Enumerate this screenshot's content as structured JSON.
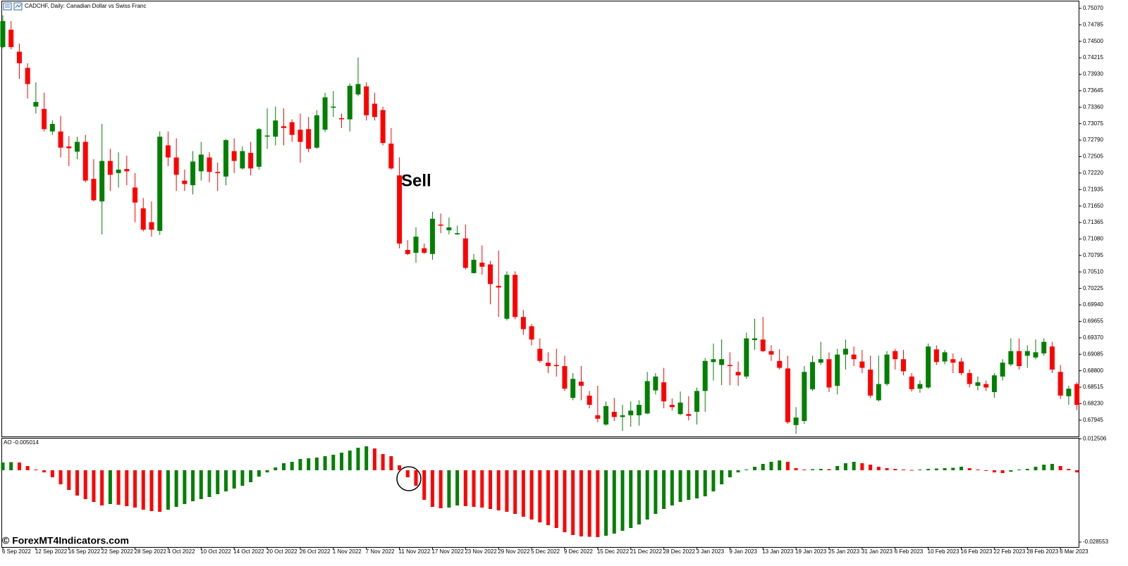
{
  "header": {
    "title": "CADCHF, Daily:  Canadian Dollar vs Swiss Franc"
  },
  "watermark": "© ForexMT4Indicators.com",
  "annotation": "Sell",
  "chart_data": [
    {
      "type": "candlestick",
      "up_color": "#008000",
      "down_color": "#ff0000",
      "open": [
        0.744,
        0.747,
        0.7432,
        0.7404,
        0.7337,
        0.7333,
        0.7294,
        0.7294,
        0.7268,
        0.7259,
        0.7276,
        0.7212,
        0.7173,
        0.7243,
        0.7222,
        0.7229,
        0.7197,
        0.7161,
        0.7137,
        0.7122,
        0.727,
        0.7249,
        0.7209,
        0.7201,
        0.7225,
        0.7249,
        0.7224,
        0.7216,
        0.726,
        0.723,
        0.7257,
        0.7233,
        0.7285,
        0.7285,
        0.7303,
        0.731,
        0.7297,
        0.7298,
        0.7266,
        0.7297,
        0.7336,
        0.7317,
        0.7315,
        0.7358,
        0.7372,
        0.7342,
        0.7331,
        0.7273,
        0.7218,
        0.7089,
        0.7084,
        0.7092,
        0.7082,
        0.7133,
        0.7123,
        0.7116,
        0.7109,
        0.7049,
        0.7067,
        0.7064,
        0.7027,
        0.697,
        0.7046,
        0.6973,
        0.6957,
        0.6918,
        0.6894,
        0.689,
        0.6888,
        0.6833,
        0.6861,
        0.6837,
        0.6803,
        0.6787,
        0.6809,
        0.68,
        0.6803,
        0.6803,
        0.6806,
        0.6846,
        0.686,
        0.6821,
        0.6805,
        0.6805,
        0.6809,
        0.6845,
        0.6895,
        0.689,
        0.689,
        0.6878,
        0.687,
        0.6933,
        0.6934,
        0.6914,
        0.6897,
        0.6884,
        0.6786,
        0.6793,
        0.6848,
        0.6894,
        0.69,
        0.6854,
        0.6908,
        0.6908,
        0.6896,
        0.6882,
        0.6829,
        0.6857,
        0.6914,
        0.69,
        0.687,
        0.6849,
        0.6851,
        0.6917,
        0.6896,
        0.69,
        0.6896,
        0.6876,
        0.6854,
        0.6857,
        0.6843,
        0.687,
        0.6891,
        0.6914,
        0.6906,
        0.6903,
        0.691,
        0.6922,
        0.6878,
        0.6836,
        0.6857
      ],
      "high": [
        0.7495,
        0.7485,
        0.7446,
        0.7412,
        0.7379,
        0.7361,
        0.7313,
        0.7321,
        0.7286,
        0.7285,
        0.7288,
        0.7246,
        0.7307,
        0.7264,
        0.7258,
        0.7252,
        0.7222,
        0.7179,
        0.7173,
        0.7294,
        0.7294,
        0.7282,
        0.7228,
        0.726,
        0.7276,
        0.7258,
        0.724,
        0.7281,
        0.7282,
        0.7268,
        0.7276,
        0.73,
        0.7334,
        0.7337,
        0.7334,
        0.7315,
        0.7325,
        0.7319,
        0.7331,
        0.7361,
        0.7364,
        0.7325,
        0.7377,
        0.7422,
        0.7379,
        0.7361,
        0.7337,
        0.73,
        0.7249,
        0.7106,
        0.7128,
        0.71,
        0.7155,
        0.7152,
        0.7145,
        0.7131,
        0.7133,
        0.7082,
        0.7097,
        0.707,
        0.7088,
        0.7052,
        0.7052,
        0.6985,
        0.6961,
        0.6936,
        0.6912,
        0.6918,
        0.6906,
        0.6876,
        0.6888,
        0.6845,
        0.6854,
        0.6827,
        0.6833,
        0.6821,
        0.6827,
        0.6829,
        0.6878,
        0.6876,
        0.6885,
        0.6832,
        0.6844,
        0.6836,
        0.6851,
        0.6902,
        0.6927,
        0.6934,
        0.6912,
        0.6896,
        0.6946,
        0.697,
        0.6973,
        0.6924,
        0.6917,
        0.6906,
        0.6817,
        0.6888,
        0.6906,
        0.693,
        0.6912,
        0.6918,
        0.6934,
        0.6922,
        0.6916,
        0.6906,
        0.6906,
        0.6914,
        0.6918,
        0.6916,
        0.6876,
        0.6863,
        0.6927,
        0.6924,
        0.6916,
        0.691,
        0.6902,
        0.6882,
        0.687,
        0.6863,
        0.6876,
        0.69,
        0.6936,
        0.6936,
        0.6924,
        0.6934,
        0.6936,
        0.693,
        0.689,
        0.6854,
        0.686
      ],
      "low": [
        0.7438,
        0.7436,
        0.7385,
        0.7351,
        0.7325,
        0.7294,
        0.7288,
        0.7249,
        0.7234,
        0.7246,
        0.7206,
        0.7173,
        0.7116,
        0.7191,
        0.7197,
        0.7201,
        0.7137,
        0.7121,
        0.7112,
        0.7115,
        0.7234,
        0.7191,
        0.7191,
        0.7185,
        0.7209,
        0.7206,
        0.7191,
        0.7201,
        0.7222,
        0.7228,
        0.7218,
        0.7228,
        0.7264,
        0.727,
        0.727,
        0.7276,
        0.724,
        0.7258,
        0.7264,
        0.7293,
        0.7319,
        0.73,
        0.7294,
        0.7355,
        0.7313,
        0.7313,
        0.727,
        0.7228,
        0.7092,
        0.708,
        0.7067,
        0.7082,
        0.7072,
        0.7118,
        0.7116,
        0.7115,
        0.7055,
        0.7048,
        0.7046,
        0.6995,
        0.6973,
        0.6967,
        0.6969,
        0.6942,
        0.6924,
        0.6894,
        0.6876,
        0.687,
        0.6845,
        0.6829,
        0.6829,
        0.6815,
        0.6791,
        0.6785,
        0.6793,
        0.6776,
        0.6783,
        0.6785,
        0.6805,
        0.6839,
        0.6815,
        0.6811,
        0.6803,
        0.6794,
        0.6787,
        0.6809,
        0.6863,
        0.6855,
        0.6855,
        0.6854,
        0.6866,
        0.6916,
        0.6912,
        0.6897,
        0.6882,
        0.6788,
        0.6771,
        0.6788,
        0.6845,
        0.689,
        0.6843,
        0.6839,
        0.6882,
        0.6888,
        0.6876,
        0.6833,
        0.6827,
        0.6854,
        0.6882,
        0.6872,
        0.6844,
        0.6842,
        0.6849,
        0.689,
        0.6891,
        0.6876,
        0.6872,
        0.6851,
        0.6846,
        0.6845,
        0.6833,
        0.6863,
        0.6888,
        0.6882,
        0.6885,
        0.69,
        0.6906,
        0.6876,
        0.6831,
        0.6821,
        0.6812
      ],
      "close": [
        0.7485,
        0.744,
        0.7412,
        0.7376,
        0.7345,
        0.7298,
        0.7307,
        0.7266,
        0.7265,
        0.7276,
        0.7209,
        0.7175,
        0.7243,
        0.7219,
        0.7228,
        0.7225,
        0.7171,
        0.7124,
        0.7124,
        0.7285,
        0.7249,
        0.7219,
        0.7203,
        0.7242,
        0.7254,
        0.7224,
        0.7222,
        0.7279,
        0.7243,
        0.726,
        0.723,
        0.7298,
        0.7287,
        0.7313,
        0.73,
        0.7288,
        0.7276,
        0.7264,
        0.7322,
        0.7353,
        0.7337,
        0.7315,
        0.7373,
        0.7376,
        0.7322,
        0.7319,
        0.7274,
        0.723,
        0.71,
        0.7082,
        0.7112,
        0.7084,
        0.7143,
        0.7131,
        0.7128,
        0.7118,
        0.7058,
        0.7072,
        0.706,
        0.703,
        0.7024,
        0.7046,
        0.6973,
        0.6952,
        0.6934,
        0.6897,
        0.6888,
        0.6888,
        0.6849,
        0.6866,
        0.6854,
        0.6821,
        0.6797,
        0.6819,
        0.68,
        0.6803,
        0.6811,
        0.6821,
        0.6862,
        0.687,
        0.6827,
        0.6817,
        0.6825,
        0.6802,
        0.6845,
        0.6897,
        0.69,
        0.69,
        0.6888,
        0.6872,
        0.6936,
        0.6936,
        0.6914,
        0.6908,
        0.6885,
        0.6791,
        0.6799,
        0.6878,
        0.6895,
        0.69,
        0.6851,
        0.6908,
        0.6918,
        0.69,
        0.6885,
        0.6837,
        0.6857,
        0.6908,
        0.69,
        0.6879,
        0.6848,
        0.6857,
        0.6922,
        0.6895,
        0.6912,
        0.6894,
        0.6876,
        0.6857,
        0.686,
        0.6851,
        0.6872,
        0.6894,
        0.6914,
        0.6888,
        0.6914,
        0.6912,
        0.693,
        0.6882,
        0.6837,
        0.6849,
        0.6821
      ],
      "ylim": [
        0.67663,
        0.7519
      ],
      "yticks": [
        {
          "value": 0.7507,
          "label": "0.75070"
        },
        0.74785,
        {
          "value": 0.745,
          "label": "0.74500"
        },
        0.74215,
        {
          "value": 0.7393,
          "label": "0.73930"
        },
        0.73645,
        {
          "value": 0.7336,
          "label": "0.73360"
        },
        0.73075,
        {
          "value": 0.7279,
          "label": "0.72790"
        },
        0.72505,
        {
          "value": 0.7222,
          "label": "0.72220"
        },
        0.71935,
        {
          "value": 0.7165,
          "label": "0.71650"
        },
        0.71365,
        {
          "value": 0.7108,
          "label": "0.71080"
        },
        0.70795,
        {
          "value": 0.7051,
          "label": "0.70510"
        },
        0.70225,
        {
          "value": 0.6994,
          "label": "0.69940"
        },
        0.69655,
        {
          "value": 0.6937,
          "label": "0.69370"
        },
        0.69085,
        {
          "value": 0.688,
          "label": "0.68800"
        },
        0.68515,
        {
          "value": 0.6823,
          "label": "0.68230"
        },
        0.67945
      ],
      "xticks": [
        {
          "value": 0,
          "label": "6 Sep 2022"
        },
        {
          "value": 4,
          "label": "12 Sep 2022"
        },
        {
          "value": 8,
          "label": "16 Sep 2022"
        },
        {
          "value": 12,
          "label": "22 Sep 2022"
        },
        {
          "value": 16,
          "label": "28 Sep 2022"
        },
        {
          "value": 20,
          "label": "4 Oct 2022"
        },
        {
          "value": 24,
          "label": "10 Oct 2022"
        },
        {
          "value": 28,
          "label": "14 Oct 2022"
        },
        {
          "value": 32,
          "label": "20 Oct 2022"
        },
        {
          "value": 36,
          "label": "26 Oct 2022"
        },
        {
          "value": 40,
          "label": "1 Nov 2022"
        },
        {
          "value": 44,
          "label": "7 Nov 2022"
        },
        {
          "value": 48,
          "label": "11 Nov 2022"
        },
        {
          "value": 52,
          "label": "17 Nov 2022"
        },
        {
          "value": 56,
          "label": "23 Nov 2022"
        },
        {
          "value": 60,
          "label": "29 Nov 2022"
        },
        {
          "value": 64,
          "label": "5 Dec 2022"
        },
        {
          "value": 68,
          "label": "9 Dec 2022"
        },
        {
          "value": 72,
          "label": "15 Dec 2022"
        },
        {
          "value": 76,
          "label": "21 Dec 2022"
        },
        {
          "value": 80,
          "label": "28 Dec 2022"
        },
        {
          "value": 84,
          "label": "3 Jan 2023"
        },
        {
          "value": 88,
          "label": "9 Jan 2023"
        },
        {
          "value": 92,
          "label": "13 Jan 2023"
        },
        {
          "value": 96,
          "label": "19 Jan 2023"
        },
        {
          "value": 100,
          "label": "25 Jan 2023"
        },
        {
          "value": 104,
          "label": "31 Jan 2023"
        },
        {
          "value": 108,
          "label": "6 Feb 2023"
        },
        {
          "value": 112,
          "label": "10 Feb 2023"
        },
        {
          "value": 116,
          "label": "16 Feb 2023"
        },
        {
          "value": 120,
          "label": "22 Feb 2023"
        },
        {
          "value": 124,
          "label": "28 Feb 2023"
        },
        {
          "value": 128,
          "label": "6 Mar 2023"
        }
      ]
    },
    {
      "type": "bar",
      "title": "AO -0.005014",
      "up_color": "#008000",
      "down_color": "#ff0000",
      "values": [
        0.00308,
        0.00322,
        0.00308,
        0.00168,
        0.00028,
        -0.00084,
        -0.0028,
        -0.0056,
        -0.00784,
        -0.01008,
        -0.01148,
        -0.0126,
        -0.014,
        -0.01344,
        -0.01372,
        -0.01428,
        -0.01484,
        -0.01568,
        -0.01624,
        -0.01652,
        -0.01568,
        -0.01456,
        -0.01344,
        -0.01232,
        -0.01148,
        -0.01064,
        -0.00952,
        -0.0084,
        -0.00728,
        -0.00616,
        -0.00476,
        -0.00252,
        -0.00084,
        0.00112,
        0.0028,
        0.00336,
        0.00448,
        0.00476,
        0.00504,
        0.0056,
        0.00616,
        0.007,
        0.00784,
        0.00896,
        0.00952,
        0.00868,
        0.00644,
        0.0056,
        0.00196,
        -0.0028,
        -0.00616,
        -0.01176,
        -0.01456,
        -0.01512,
        -0.01484,
        -0.014,
        -0.01428,
        -0.01456,
        -0.01484,
        -0.0154,
        -0.01596,
        -0.01652,
        -0.01736,
        -0.01848,
        -0.0196,
        -0.02072,
        -0.02184,
        -0.02296,
        -0.02464,
        -0.02576,
        -0.02632,
        -0.02646,
        -0.0266,
        -0.02604,
        -0.0252,
        -0.02408,
        -0.02296,
        -0.02156,
        -0.0196,
        -0.01736,
        -0.0154,
        -0.014,
        -0.0126,
        -0.01176,
        -0.0112,
        -0.01036,
        -0.0084,
        -0.0056,
        -0.0028,
        -0.00084,
        0.00028,
        0.0014,
        0.00252,
        0.00336,
        0.00392,
        0.00336,
        0.00084,
        0.00028,
        0.00042,
        0.00056,
        0.00042,
        0.00168,
        0.0028,
        0.00336,
        0.0028,
        0.00224,
        0.0014,
        0.00084,
        0.00056,
        0.00028,
        0.00014,
        0.00028,
        0.00056,
        0.0007,
        0.00084,
        0.00098,
        0.0014,
        0.00084,
        0.00028,
        -0.00028,
        -0.00084,
        -0.00112,
        -0.00056,
        0.00028,
        0.00056,
        0.0014,
        0.00224,
        0.00252,
        0.00168,
        0.00056,
        -0.00084
      ],
      "ylim": [
        -0.03052,
        0.01288
      ],
      "yticks": [
        0.012506,
        -0.028553
      ]
    }
  ]
}
